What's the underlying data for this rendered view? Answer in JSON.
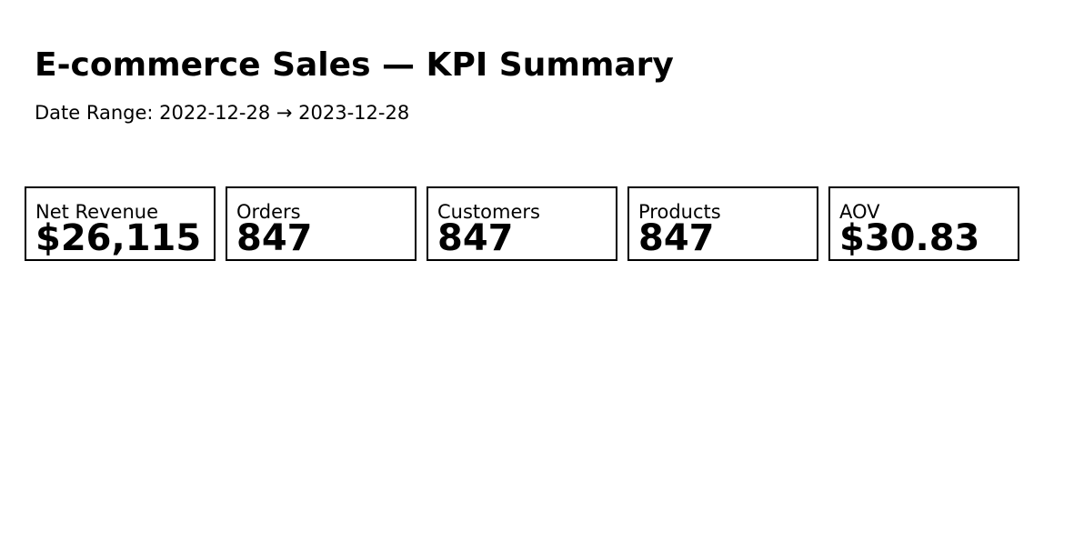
{
  "header": {
    "title": "E-commerce Sales — KPI Summary",
    "date_range": "Date Range: 2022-12-28 → 2023-12-28"
  },
  "kpis": [
    {
      "label": "Net Revenue",
      "value": "$26,115"
    },
    {
      "label": "Orders",
      "value": "847"
    },
    {
      "label": "Customers",
      "value": "847"
    },
    {
      "label": "Products",
      "value": "847"
    },
    {
      "label": "AOV",
      "value": "$30.83"
    }
  ]
}
